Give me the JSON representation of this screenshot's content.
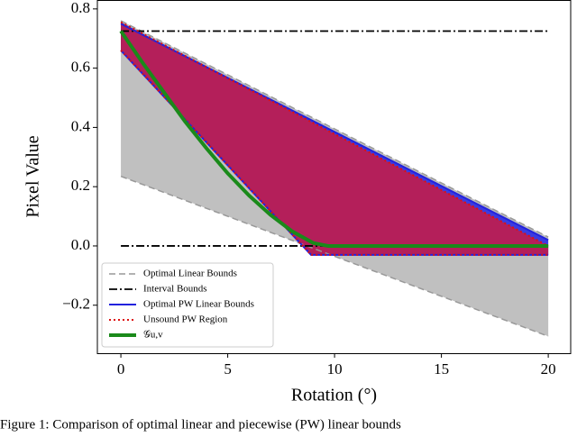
{
  "chart_data": {
    "type": "line",
    "xlabel": "Rotation (°)",
    "ylabel": "Pixel Value",
    "caption": "Figure 1: Comparison of optimal linear and piecewise (PW) linear bounds",
    "xlim": [
      -1.1,
      21.05
    ],
    "ylim": [
      -0.362,
      0.83
    ],
    "xticks": [
      0,
      5,
      10,
      15,
      20
    ],
    "yticks": [
      {
        "value": -0.2,
        "label": "−0.2"
      },
      {
        "value": 0,
        "label": "0.0"
      },
      0.2,
      0.4,
      0.6,
      0.8
    ],
    "legend": "lower left",
    "series": [
      {
        "name": "Optimal Linear Bounds",
        "color": "#999999",
        "style": "dashed",
        "fill": "#c0c0c0",
        "x": [
          0,
          20
        ],
        "values": [
          0.76,
          0.03
        ],
        "lower": [
          0.235,
          -0.305
        ]
      },
      {
        "name": "Interval Bounds",
        "color": "#000000",
        "style": "dashdot",
        "x": [
          0,
          20
        ],
        "values": [
          0.725,
          0.725
        ],
        "lower": [
          0,
          0
        ]
      },
      {
        "name": "Optimal PW Linear Bounds",
        "color": "#2222dd",
        "style": "solid",
        "fill": "#3b3be0",
        "x": [
          0,
          8.9,
          20
        ],
        "values": [
          0.75,
          0.425,
          0.02
        ],
        "lower": [
          0.66,
          -0.03,
          -0.03
        ]
      },
      {
        "name": "Unsound PW Region",
        "color": "#dd1111",
        "style": "dotted",
        "fill": "#b41f5a",
        "x": [
          0,
          8.9,
          20
        ],
        "values": [
          0.755,
          0.419,
          0.0
        ],
        "lower": [
          0.66,
          -0.03,
          -0.03
        ]
      },
      {
        "name": "𝒢u,v",
        "color": "#1a8a1a",
        "style": "thick",
        "x": [
          0,
          1,
          2,
          3,
          4,
          5,
          6,
          7,
          8,
          9,
          9.7,
          20
        ],
        "values": [
          0.725,
          0.62,
          0.52,
          0.42,
          0.33,
          0.245,
          0.17,
          0.105,
          0.05,
          0.01,
          0,
          0
        ]
      }
    ]
  }
}
